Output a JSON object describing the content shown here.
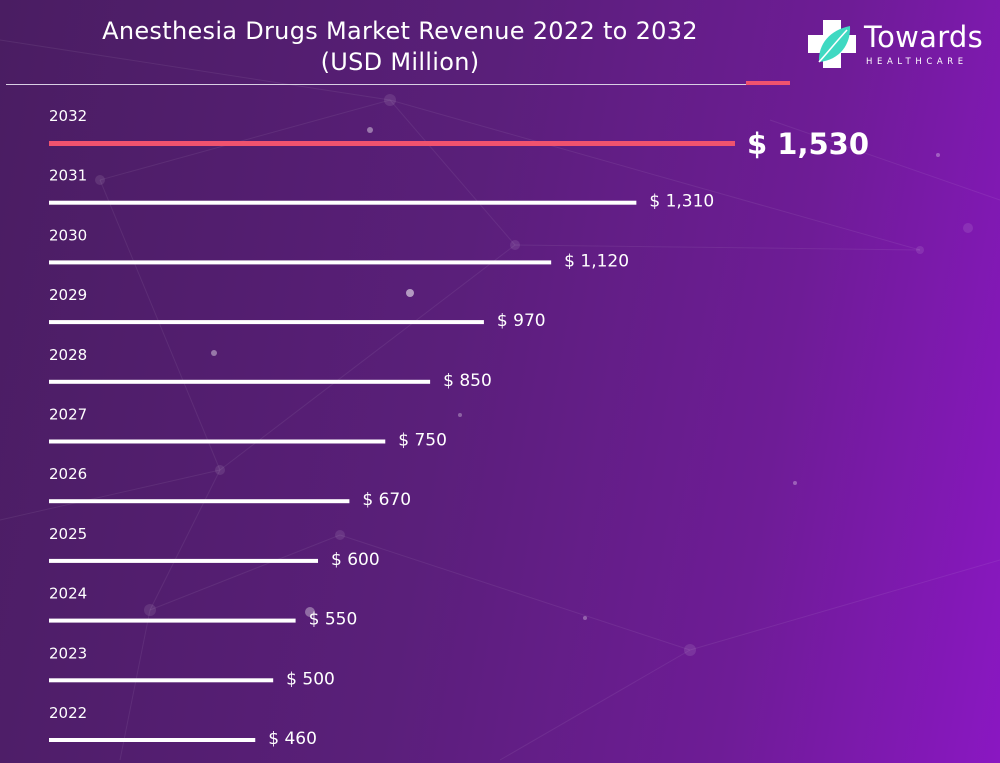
{
  "title_line1": "Anesthesia Drugs Market Revenue 2022 to 2032",
  "title_line2": "(USD Million)",
  "logo": {
    "name": "Towards",
    "sub": "HEALTHCARE",
    "icon": "healthcare-cross-leaf-icon"
  },
  "colors": {
    "background_start": "#4a1d62",
    "background_end": "#8a17c2",
    "bar": "#ffffff",
    "highlight": "#f0526e",
    "logo_leaf": "#3fd9c2"
  },
  "chart_data": {
    "type": "bar",
    "orientation": "horizontal",
    "categories": [
      "2032",
      "2031",
      "2030",
      "2029",
      "2028",
      "2027",
      "2026",
      "2025",
      "2024",
      "2023",
      "2022"
    ],
    "values": [
      1530,
      1310,
      1120,
      970,
      850,
      750,
      670,
      600,
      550,
      500,
      460
    ],
    "value_labels": [
      "$ 1,530",
      "$ 1,310",
      "$ 1,120",
      "$ 970",
      "$ 850",
      "$ 750",
      "$ 670",
      "$ 600",
      "$ 550",
      "$ 500",
      "$ 460"
    ],
    "highlight_category": "2032",
    "unit": "USD Million",
    "xlim": [
      0,
      1530
    ],
    "grid": false,
    "legend": "none"
  }
}
